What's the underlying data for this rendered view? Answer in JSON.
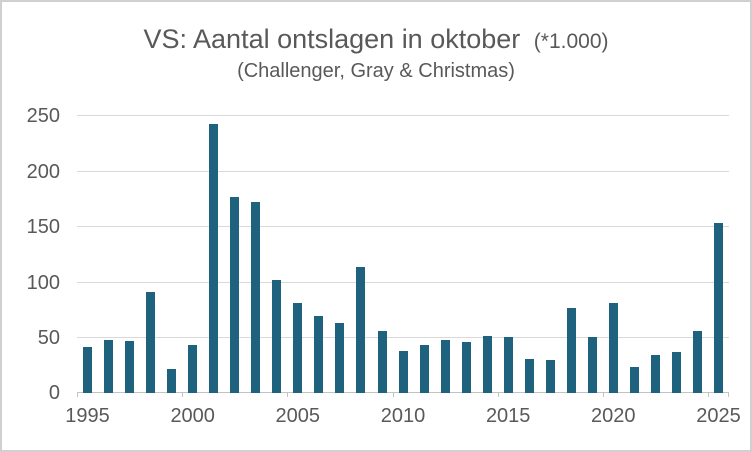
{
  "title": {
    "main": "VS: Aantal ontslagen in oktober",
    "unit": "(*1.000)",
    "subtitle": "(Challenger, Gray & Christmas)"
  },
  "chart_data": {
    "type": "bar",
    "title": "VS: Aantal ontslagen in oktober (*1.000)",
    "subtitle": "(Challenger, Gray & Christmas)",
    "categories": [
      1995,
      1996,
      1997,
      1998,
      1999,
      2000,
      2001,
      2002,
      2003,
      2004,
      2005,
      2006,
      2007,
      2008,
      2009,
      2010,
      2011,
      2012,
      2013,
      2014,
      2015,
      2016,
      2017,
      2018,
      2019,
      2020,
      2021,
      2022,
      2023,
      2024,
      2025
    ],
    "values": [
      41,
      48,
      47,
      91,
      22,
      43,
      242,
      176,
      172,
      102,
      81,
      69,
      63,
      113,
      56,
      38,
      43,
      48,
      46,
      51,
      50,
      31,
      30,
      76,
      50,
      81,
      23,
      34,
      37,
      56,
      153
    ],
    "xlabel": "",
    "ylabel": "",
    "ylim": [
      0,
      250
    ],
    "y_ticks": [
      0,
      50,
      100,
      150,
      200,
      250
    ],
    "x_tick_labels": [
      "1995",
      "2000",
      "2005",
      "2010",
      "2015",
      "2020",
      "2025"
    ],
    "x_tick_interval": 5,
    "grid": "horizontal",
    "legend_position": "none",
    "bar_color": "#1F627E",
    "gridline_color": "#D9D9D9",
    "axis_color": "#C3C3C3",
    "text_color": "#595959"
  }
}
